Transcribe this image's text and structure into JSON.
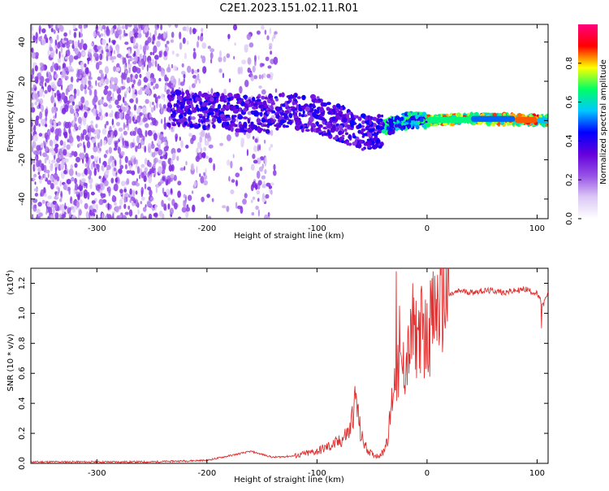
{
  "title": "C2E1.2023.151.02.11.R01",
  "chart_data": [
    {
      "type": "heatmap",
      "name": "spectrogram",
      "xlabel": "Height of straight line (km)",
      "ylabel": "Frequency (Hz)",
      "xlim": [
        -360,
        110
      ],
      "ylim": [
        -50,
        49
      ],
      "xticks": [
        -300,
        -200,
        -100,
        0,
        100
      ],
      "yticks": [
        -40,
        -20,
        0,
        20,
        40
      ],
      "colorbar": {
        "label": "Normalized spectral amplitude",
        "range": [
          0,
          1
        ],
        "ticks": [
          0.0,
          0.2,
          0.4,
          0.6,
          0.8
        ],
        "colors": [
          "#ffffff",
          "#dcc8f5",
          "#9650e6",
          "#6400dc",
          "#0000ff",
          "#00c8ff",
          "#00ff64",
          "#ffff00",
          "#ff0000",
          "#ff007f"
        ]
      },
      "ridge": {
        "x": [
          -230,
          -200,
          -175,
          -150,
          -125,
          -100,
          -85,
          -70,
          -55,
          -45,
          -35,
          -25,
          -15,
          0,
          50,
          110
        ],
        "y": [
          6,
          5,
          4,
          3,
          5,
          3,
          0,
          -4,
          -7,
          -6,
          -3,
          -1,
          0,
          0,
          1,
          0
        ]
      }
    },
    {
      "type": "line",
      "name": "snr",
      "xlabel": "Height of straight line (km)",
      "ylabel": "SNR (10 * v/v)",
      "ylabel_multiplier": "(x10",
      "ylabel_exponent": "4",
      "ylabel_multiplier_close": ")",
      "xlim": [
        -360,
        110
      ],
      "ylim": [
        0,
        1.3
      ],
      "xticks": [
        -300,
        -200,
        -100,
        0,
        100
      ],
      "yticks": [
        "0.0",
        "0.2",
        "0.4",
        "0.6",
        "0.8",
        "1.0",
        "1.2"
      ],
      "color": "#e03030",
      "x": [
        -360,
        -300,
        -250,
        -200,
        -180,
        -160,
        -140,
        -120,
        -100,
        -90,
        -80,
        -70,
        -65,
        -60,
        -55,
        -50,
        -45,
        -40,
        -35,
        -30,
        -25,
        -20,
        -15,
        -10,
        -5,
        0,
        5,
        10,
        20,
        30,
        40,
        50,
        60,
        70,
        80,
        90,
        100,
        105,
        110
      ],
      "y": [
        0.01,
        0.01,
        0.01,
        0.02,
        0.05,
        0.08,
        0.04,
        0.05,
        0.08,
        0.11,
        0.14,
        0.22,
        0.45,
        0.18,
        0.1,
        0.06,
        0.05,
        0.07,
        0.2,
        0.55,
        0.6,
        0.65,
        0.78,
        0.85,
        0.9,
        0.82,
        0.95,
        1.05,
        1.12,
        1.15,
        1.14,
        1.15,
        1.15,
        1.14,
        1.15,
        1.16,
        1.13,
        1.05,
        1.13
      ],
      "peaks": [
        {
          "x": -66,
          "y": 0.47
        },
        {
          "x": -28,
          "y": 1.28
        },
        {
          "x": -25,
          "y": 1.05
        },
        {
          "x": -13,
          "y": 1.2
        },
        {
          "x": 3,
          "y": 1.22
        },
        {
          "x": 104,
          "y": 0.9
        }
      ]
    }
  ]
}
